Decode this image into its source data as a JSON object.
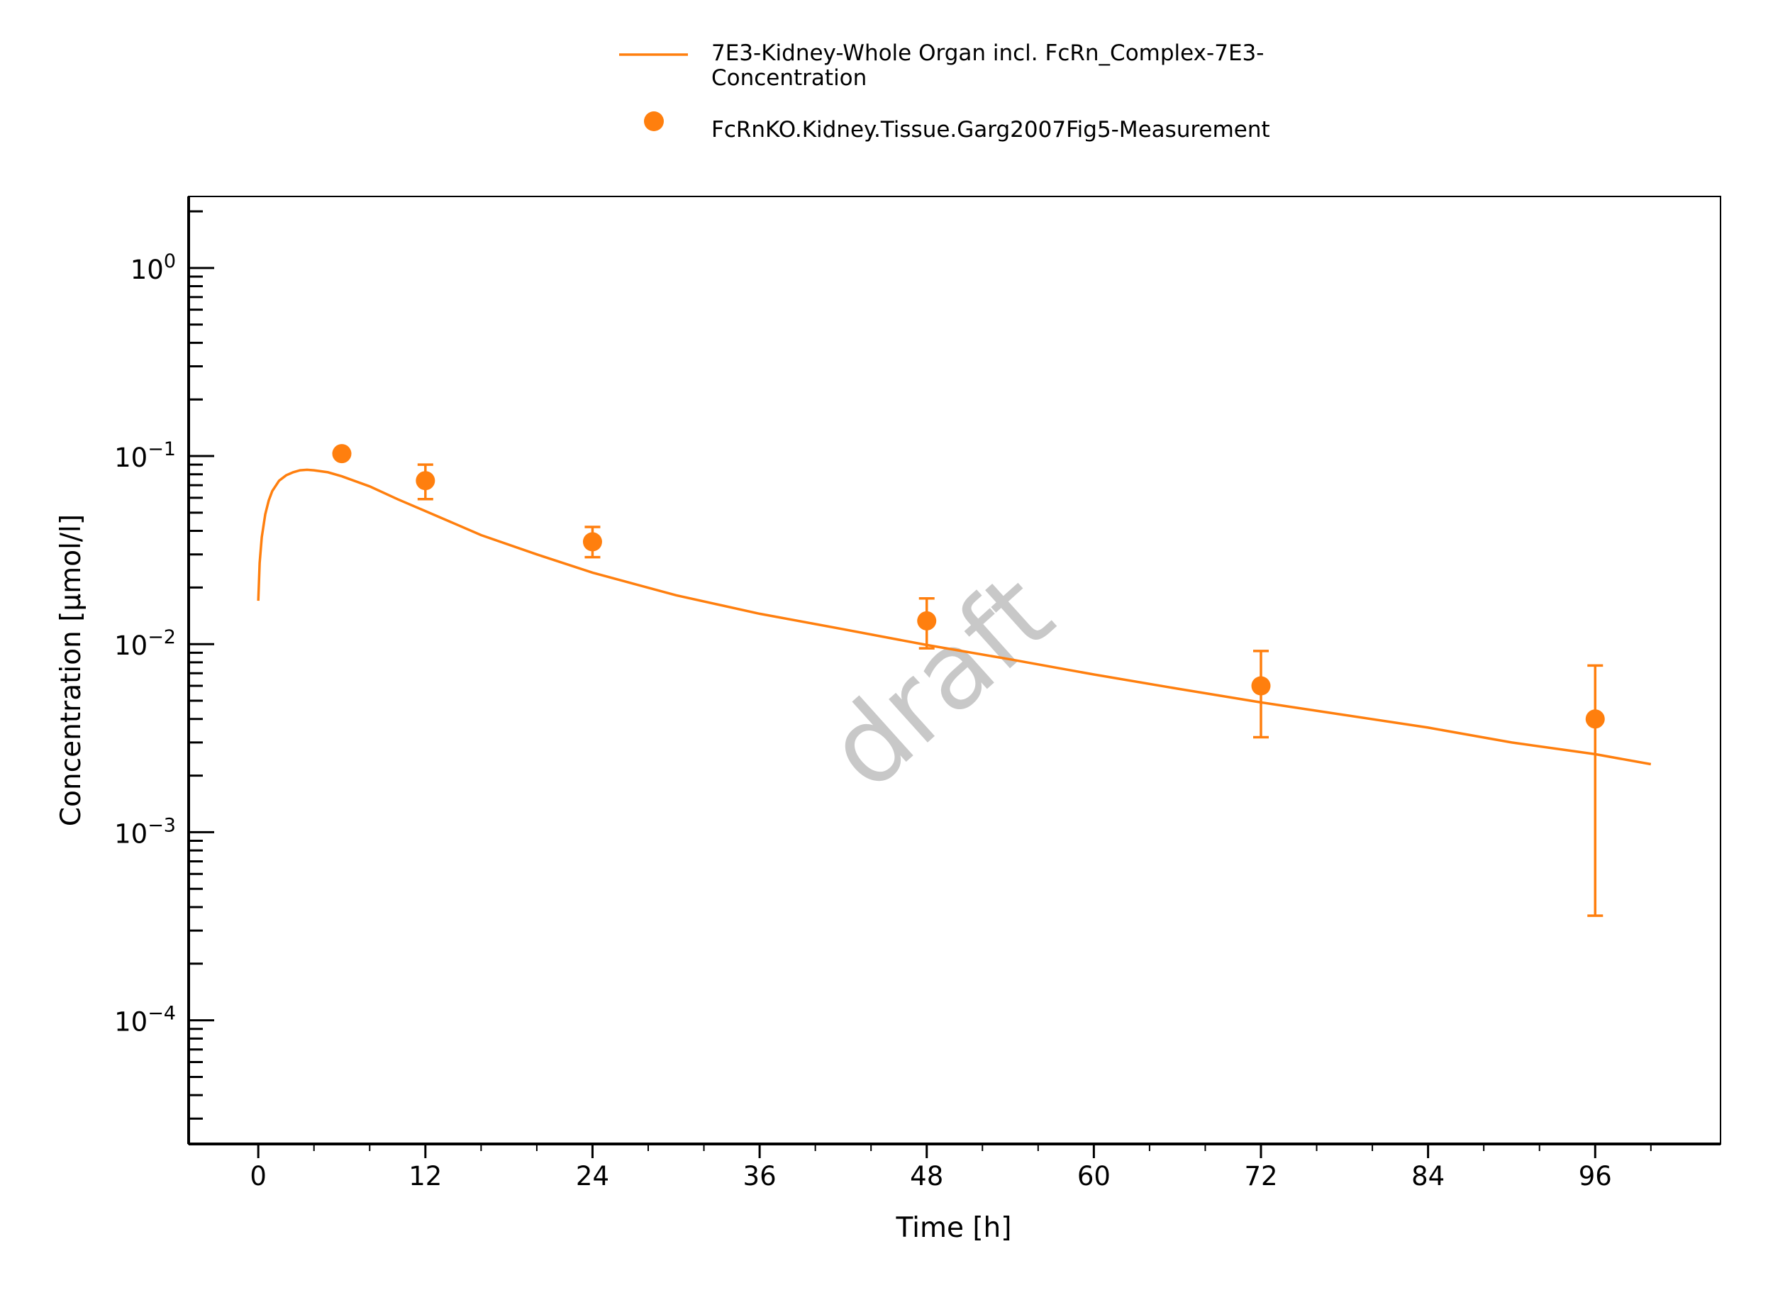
{
  "chart_data": {
    "type": "line",
    "title": "",
    "xlabel": "Time [h]",
    "ylabel": "Concentration [µmol/l]",
    "xlim": [
      -5,
      105
    ],
    "ylim": [
      2.2e-05,
      2.4
    ],
    "y_scale": "log",
    "x_ticks": [
      "0",
      "12",
      "24",
      "36",
      "48",
      "60",
      "72",
      "84",
      "96"
    ],
    "y_ticks": [
      {
        "base": "10",
        "exp": "0"
      },
      {
        "base": "10",
        "exp": "−1"
      },
      {
        "base": "10",
        "exp": "−2"
      },
      {
        "base": "10",
        "exp": "−3"
      },
      {
        "base": "10",
        "exp": "−4"
      }
    ],
    "grid": false,
    "legend_position": "top-center",
    "watermark": "draft",
    "colors": {
      "series": "#ff7f0e",
      "watermark": "#c8c8c8",
      "axis": "#000000"
    },
    "series": [
      {
        "name_lines": [
          "7E3-Kidney-Whole Organ incl. FcRn_Complex-7E3-",
          "Concentration"
        ],
        "type": "line",
        "x": [
          0,
          0.1,
          0.25,
          0.5,
          0.75,
          1,
          1.5,
          2,
          2.5,
          3,
          3.5,
          4,
          5,
          6,
          8,
          10,
          12,
          16,
          20,
          24,
          30,
          36,
          42,
          48,
          54,
          60,
          66,
          72,
          78,
          84,
          90,
          96,
          100
        ],
        "y": [
          0.017,
          0.027,
          0.037,
          0.049,
          0.058,
          0.065,
          0.074,
          0.079,
          0.082,
          0.084,
          0.0845,
          0.084,
          0.082,
          0.078,
          0.069,
          0.059,
          0.051,
          0.038,
          0.03,
          0.024,
          0.0182,
          0.0145,
          0.012,
          0.0099,
          0.0083,
          0.0069,
          0.0058,
          0.0049,
          0.0042,
          0.0036,
          0.003,
          0.0026,
          0.0023
        ]
      },
      {
        "name": "FcRnKO.Kidney.Tissue.Garg2007Fig5-Measurement",
        "type": "scatter",
        "x": [
          6,
          12,
          24,
          48,
          72,
          96
        ],
        "y": [
          0.103,
          0.074,
          0.035,
          0.0133,
          0.006,
          0.004
        ],
        "y_err_low": [
          null,
          0.059,
          0.029,
          0.0095,
          0.0032,
          0.00036
        ],
        "y_err_high": [
          null,
          0.09,
          0.042,
          0.0175,
          0.0092,
          0.0077
        ]
      }
    ]
  }
}
